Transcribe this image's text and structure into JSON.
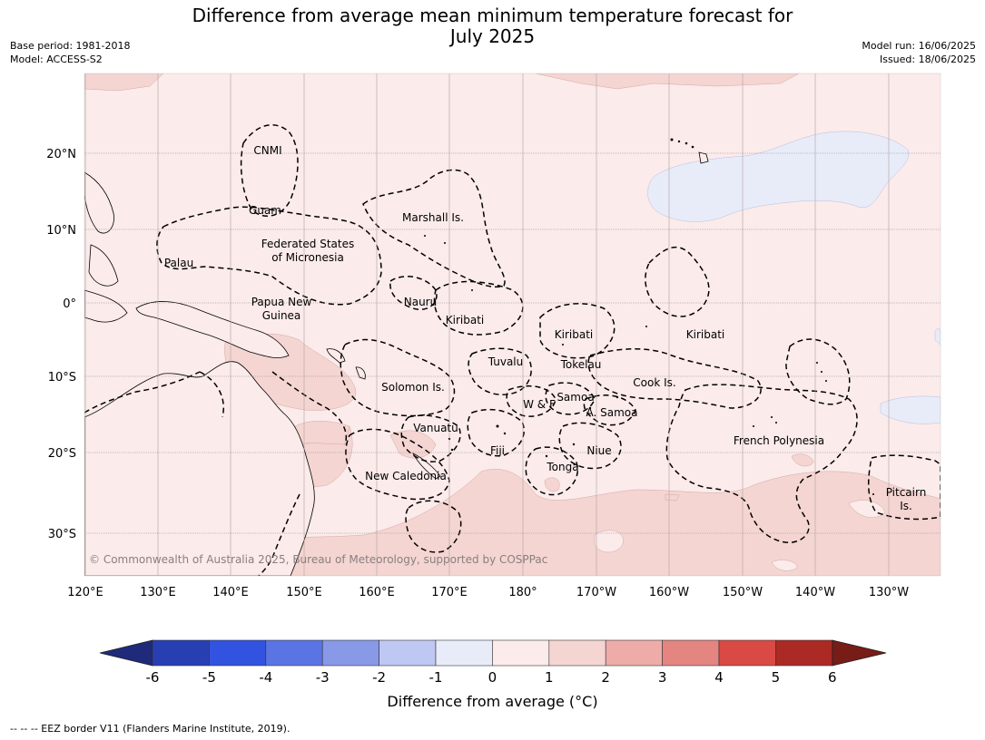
{
  "header": {
    "title_line1": "Difference from average mean minimum temperature forecast for",
    "title_line2": "July 2025",
    "base_period": "Base period: 1981-2018",
    "model": "Model: ACCESS-S2",
    "model_run": "Model run: 16/06/2025",
    "issued": "Issued: 18/06/2025"
  },
  "map": {
    "lon_ticks": [
      "120°E",
      "130°E",
      "140°E",
      "150°E",
      "160°E",
      "170°E",
      "180°",
      "170°W",
      "160°W",
      "150°W",
      "140°W",
      "130°W"
    ],
    "lat_ticks": [
      "20°N",
      "10°N",
      "0°",
      "10°S",
      "20°S",
      "30°S"
    ],
    "region_labels": [
      {
        "text": "CNMI"
      },
      {
        "text": "Guam"
      },
      {
        "text": "Marshall Is."
      },
      {
        "text": "Federated States"
      },
      {
        "text": "of Micronesia"
      },
      {
        "text": "Palau"
      },
      {
        "text": "Papua New"
      },
      {
        "text": "Guinea"
      },
      {
        "text": "Nauru"
      },
      {
        "text": "Kiribati"
      },
      {
        "text": "Kiribati"
      },
      {
        "text": "Kiribati"
      },
      {
        "text": "Tuvalu"
      },
      {
        "text": "Tokelau"
      },
      {
        "text": "Cook Is."
      },
      {
        "text": "Solomon Is."
      },
      {
        "text": "Samoa"
      },
      {
        "text": "W & F"
      },
      {
        "text": "A. Samoa"
      },
      {
        "text": "Vanuatu"
      },
      {
        "text": "Fiji"
      },
      {
        "text": "Niue"
      },
      {
        "text": "French Polynesia"
      },
      {
        "text": "Tonga"
      },
      {
        "text": "New Caledonia"
      },
      {
        "text": "Pitcairn"
      },
      {
        "text": "Is."
      }
    ],
    "copyright": "© Commonwealth of Australia 2025, Bureau of Meteorology, supported by COSPPac",
    "colors": {
      "ocean_base": "#fbebea",
      "warm_1_2": "#f4d5d2",
      "cool_0_1": "#e8ecf9",
      "eez": "#000000"
    }
  },
  "colorbar": {
    "ticks": [
      "-6",
      "-5",
      "-4",
      "-3",
      "-2",
      "-1",
      "0",
      "1",
      "2",
      "3",
      "4",
      "5",
      "6"
    ],
    "colors": [
      "#1f2a7a",
      "#283fb4",
      "#3253e0",
      "#5a74e4",
      "#8899e8",
      "#bfc7f3",
      "#e8ecf9",
      "#fbebea",
      "#f4d5d2",
      "#edaca8",
      "#e48581",
      "#d94a44",
      "#ac2a24",
      "#771c17"
    ],
    "label": "Difference from average (°C)"
  },
  "footer": {
    "legend": "--  --  -- EEZ border V11 (Flanders Marine Institute, 2019)."
  }
}
